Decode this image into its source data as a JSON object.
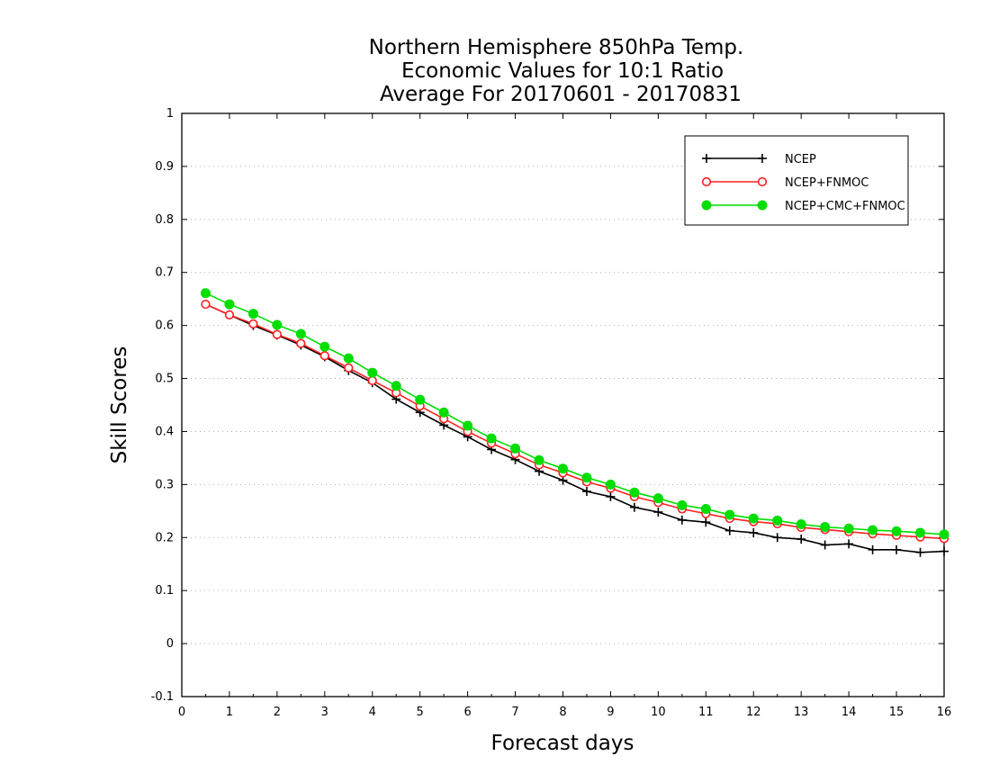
{
  "chart_data": {
    "type": "line",
    "title": [
      "Northern Hemisphere 850hPa Temp.",
      "Economic Values for 10:1 Ratio",
      "Average For 20170601 - 20170831"
    ],
    "xlabel": "Forecast days",
    "ylabel": "Skill Scores",
    "xlim": [
      0,
      16
    ],
    "ylim": [
      -0.1,
      1
    ],
    "xticks": [
      "0",
      "1",
      "2",
      "3",
      "4",
      "5",
      "6",
      "7",
      "8",
      "9",
      "10",
      "11",
      "12",
      "13",
      "14",
      "15",
      "16"
    ],
    "yticks": [
      "-0.1",
      "0",
      "0.1",
      "0.2",
      "0.3",
      "0.4",
      "0.5",
      "0.6",
      "0.7",
      "0.8",
      "0.9",
      "1"
    ],
    "grid": "horizontal dotted",
    "legend_position": "top-right",
    "x": [
      0.5,
      1,
      1.5,
      2,
      2.5,
      3,
      3.5,
      4,
      4.5,
      5,
      5.5,
      6,
      6.5,
      7,
      7.5,
      8,
      8.5,
      9,
      9.5,
      10,
      10.5,
      11,
      11.5,
      12,
      12.5,
      13,
      13.5,
      14,
      14.5,
      15,
      15.5,
      16
    ],
    "series": [
      {
        "name": "NCEP",
        "color": "#000000",
        "marker": "plus",
        "values": [
          0.64,
          0.62,
          0.6,
          0.582,
          0.563,
          0.541,
          0.515,
          0.492,
          0.461,
          0.436,
          0.412,
          0.39,
          0.366,
          0.347,
          0.325,
          0.308,
          0.287,
          0.277,
          0.257,
          0.248,
          0.233,
          0.229,
          0.213,
          0.209,
          0.2,
          0.197,
          0.186,
          0.188,
          0.177,
          0.177,
          0.172,
          0.174
        ]
      },
      {
        "name": "NCEP+FNMOC",
        "color": "#ff2020",
        "marker": "open-circle",
        "values": [
          0.64,
          0.62,
          0.603,
          0.583,
          0.566,
          0.543,
          0.52,
          0.496,
          0.473,
          0.448,
          0.424,
          0.4,
          0.378,
          0.358,
          0.337,
          0.322,
          0.305,
          0.293,
          0.277,
          0.266,
          0.254,
          0.245,
          0.236,
          0.23,
          0.226,
          0.219,
          0.215,
          0.211,
          0.207,
          0.204,
          0.201,
          0.198
        ]
      },
      {
        "name": "NCEP+CMC+FNMOC",
        "color": "#00dd00",
        "marker": "filled-circle",
        "values": [
          0.661,
          0.64,
          0.622,
          0.601,
          0.584,
          0.56,
          0.538,
          0.511,
          0.486,
          0.46,
          0.436,
          0.411,
          0.387,
          0.368,
          0.346,
          0.33,
          0.313,
          0.3,
          0.285,
          0.274,
          0.261,
          0.254,
          0.243,
          0.236,
          0.232,
          0.225,
          0.22,
          0.217,
          0.214,
          0.212,
          0.209,
          0.206
        ]
      }
    ]
  }
}
